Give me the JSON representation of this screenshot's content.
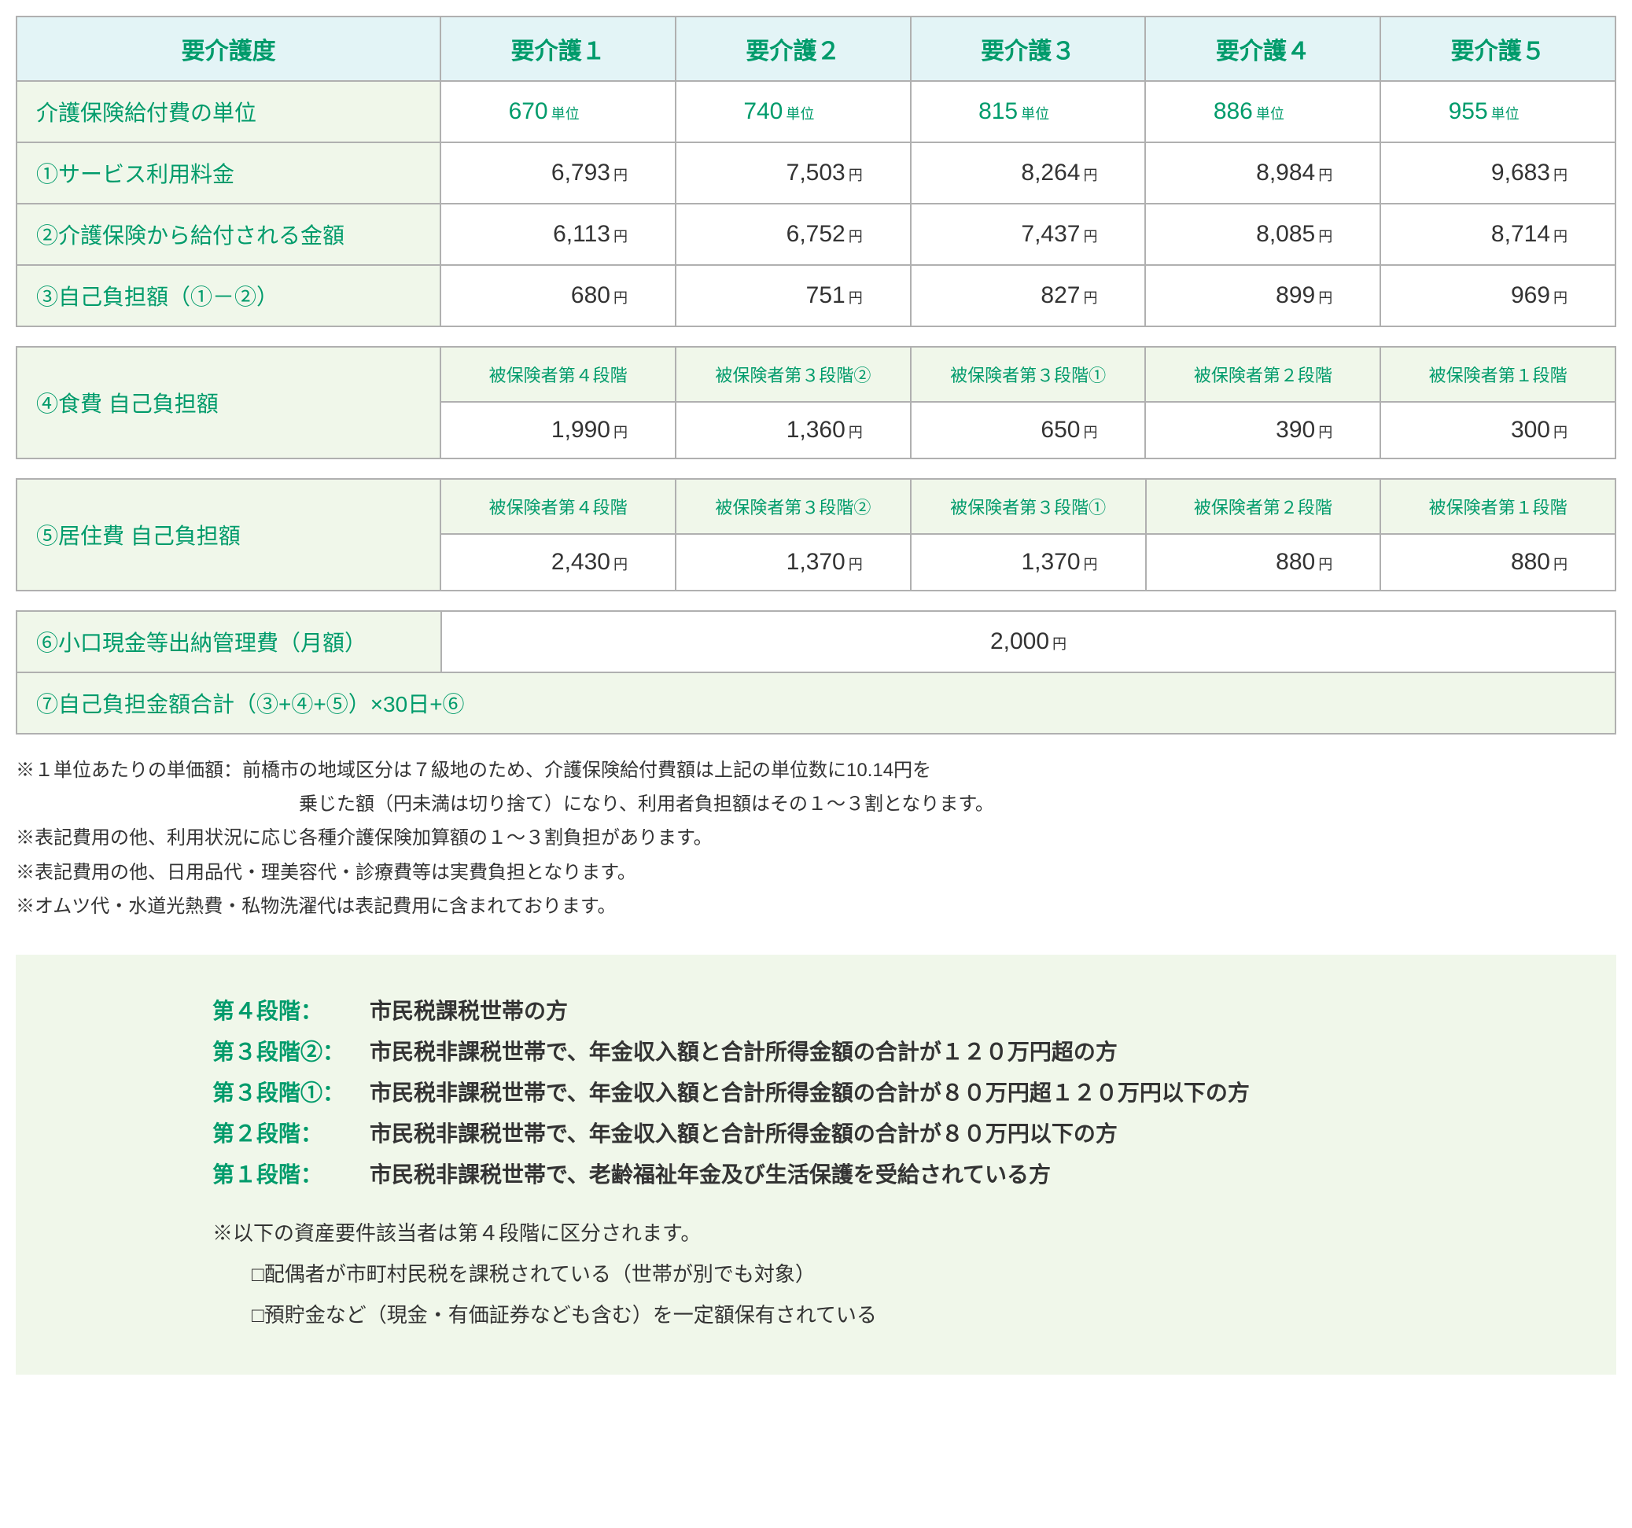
{
  "colors": {
    "accent": "#009b6b",
    "header_bg": "#e3f4f6",
    "label_bg": "#f0f7ea",
    "border": "#b0b0b0",
    "text": "#333333",
    "page_bg": "#ffffff"
  },
  "table1": {
    "headers": [
      "要介護度",
      "要介護１",
      "要介護２",
      "要介護３",
      "要介護４",
      "要介護５"
    ],
    "rows": [
      {
        "label": "介護保険給付費の単位",
        "unit": "単位",
        "values": [
          "670",
          "740",
          "815",
          "886",
          "955"
        ],
        "style": "units"
      },
      {
        "label": "①サービス利用料金",
        "unit": "円",
        "values": [
          "6,793",
          "7,503",
          "8,264",
          "8,984",
          "9,683"
        ],
        "style": "money"
      },
      {
        "label": "②介護保険から給付される金額",
        "unit": "円",
        "values": [
          "6,113",
          "6,752",
          "7,437",
          "8,085",
          "8,714"
        ],
        "style": "money"
      },
      {
        "label": "③自己負担額（①－②）",
        "unit": "円",
        "values": [
          "680",
          "751",
          "827",
          "899",
          "969"
        ],
        "style": "money"
      }
    ]
  },
  "table2": {
    "rowlabel": "④食費 自己負担額",
    "tiers": [
      "被保険者第４段階",
      "被保険者第３段階②",
      "被保険者第３段階①",
      "被保険者第２段階",
      "被保険者第１段階"
    ],
    "unit": "円",
    "values": [
      "1,990",
      "1,360",
      "650",
      "390",
      "300"
    ]
  },
  "table3": {
    "rowlabel": "⑤居住費 自己負担額",
    "tiers": [
      "被保険者第４段階",
      "被保険者第３段階②",
      "被保険者第３段階①",
      "被保険者第２段階",
      "被保険者第１段階"
    ],
    "unit": "円",
    "values": [
      "2,430",
      "1,370",
      "1,370",
      "880",
      "880"
    ]
  },
  "table4": {
    "row1_label": "⑥小口現金等出納管理費（月額）",
    "row1_value": "2,000",
    "row1_unit": "円",
    "row2_label": "⑦自己負担金額合計（③+④+⑤）×30日+⑥"
  },
  "notes": [
    "※１単位あたりの単価額：前橋市の地域区分は７級地のため、介護保険給付費額は上記の単位数に10.14円を",
    "乗じた額（円未満は切り捨て）になり、利用者負担額はその１〜３割となります。",
    "※表記費用の他、利用状況に応じ各種介護保険加算額の１〜３割負担があります。",
    "※表記費用の他、日用品代・理美容代・診療費等は実費負担となります。",
    "※オムツ代・水道光熱費・私物洗濯代は表記費用に含まれております。"
  ],
  "tiers": [
    {
      "label": "第４段階",
      "desc": "市民税課税世帯の方"
    },
    {
      "label": "第３段階②",
      "desc": "市民税非課税世帯で、年金収入額と合計所得金額の合計が１２０万円超の方"
    },
    {
      "label": "第３段階①",
      "desc": "市民税非課税世帯で、年金収入額と合計所得金額の合計が８０万円超１２０万円以下の方"
    },
    {
      "label": "第２段階",
      "desc": "市民税非課税世帯で、年金収入額と合計所得金額の合計が８０万円以下の方"
    },
    {
      "label": "第１段階",
      "desc": "市民税非課税世帯で、老齢福祉年金及び生活保護を受給されている方"
    }
  ],
  "asset_note": {
    "line1": "※以下の資産要件該当者は第４段階に区分されます。",
    "line2": "□配偶者が市町村民税を課税されている（世帯が別でも対象）",
    "line3": "□預貯金など（現金・有価証券なども含む）を一定額保有されている"
  }
}
